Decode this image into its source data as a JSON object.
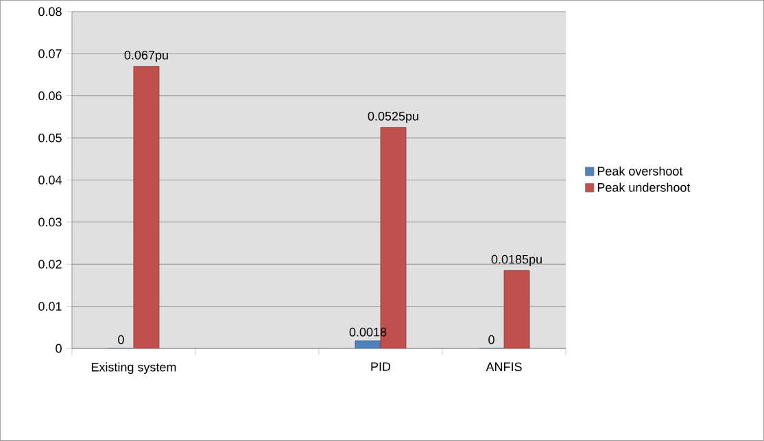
{
  "chart_data": {
    "type": "bar",
    "categories": [
      "Existing system",
      null,
      "PID",
      "ANFIS"
    ],
    "series": [
      {
        "name": "Peak overshoot",
        "color": "#4f81bd",
        "values": [
          0,
          null,
          0.0018,
          0
        ],
        "value_labels": [
          "0",
          null,
          "0.0018",
          "0"
        ]
      },
      {
        "name": "Peak undershoot",
        "color": "#c0504d",
        "values": [
          0.067,
          null,
          0.0525,
          0.0185
        ],
        "value_labels": [
          "0.067pu",
          null,
          "0.0525pu",
          "0.0185pu"
        ]
      }
    ],
    "ylim": [
      0,
      0.08
    ],
    "yticks": [
      0,
      0.01,
      0.02,
      0.03,
      0.04,
      0.05,
      0.06,
      0.07,
      0.08
    ],
    "grid": "y",
    "legend": "right"
  }
}
